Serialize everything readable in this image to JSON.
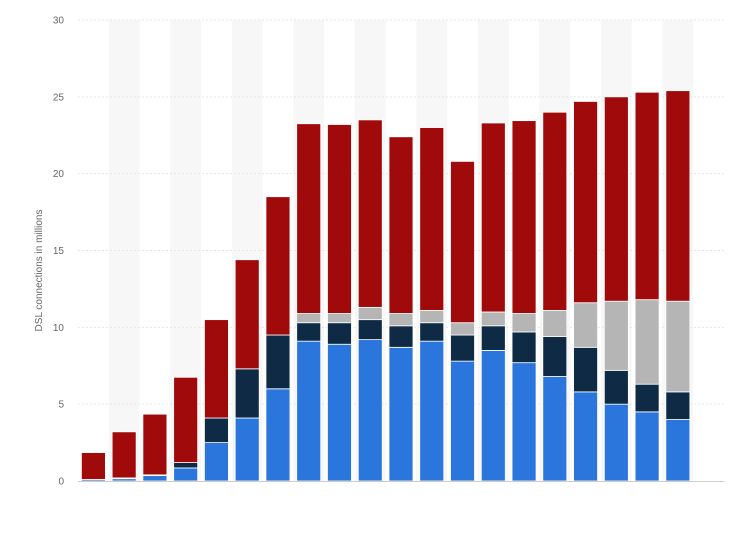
{
  "chart_data": {
    "type": "bar",
    "stacked": true,
    "title": "",
    "xlabel": "",
    "ylabel": "DSL connections in millions",
    "ylim": [
      0,
      30
    ],
    "yticks": [
      0,
      5,
      10,
      15,
      20,
      25,
      30
    ],
    "grid": true,
    "legend": "none",
    "categories": [
      "",
      "",
      "",
      "",
      "",
      "",
      "",
      "",
      "",
      "",
      "",
      "",
      "",
      "",
      "",
      "",
      "",
      "",
      "",
      "",
      ""
    ],
    "series": [
      {
        "color": "#2a76dd",
        "values": [
          0.1,
          0.15,
          0.35,
          0.85,
          2.5,
          4.1,
          6.0,
          9.1,
          8.9,
          9.2,
          8.7,
          9.1,
          7.8,
          8.5,
          7.7,
          6.8,
          5.8,
          5.0,
          4.5,
          4.0,
          0
        ]
      },
      {
        "color": "#0f2a44",
        "values": [
          0.0,
          0.05,
          0.05,
          0.35,
          1.6,
          3.2,
          3.5,
          1.2,
          1.4,
          1.3,
          1.4,
          1.2,
          1.7,
          1.6,
          2.0,
          2.6,
          2.9,
          2.2,
          1.8,
          1.8,
          0
        ]
      },
      {
        "color": "#b5b5b5",
        "values": [
          0.0,
          0.0,
          0.0,
          0.0,
          0.0,
          0.0,
          0.0,
          0.6,
          0.6,
          0.8,
          0.8,
          0.8,
          0.8,
          0.9,
          1.2,
          1.7,
          2.9,
          4.5,
          5.5,
          5.9,
          0
        ]
      },
      {
        "color": "#a10a0a",
        "values": [
          1.75,
          3.0,
          3.95,
          5.55,
          6.4,
          7.1,
          9.0,
          12.35,
          12.3,
          12.2,
          11.5,
          11.9,
          10.5,
          12.3,
          12.55,
          12.9,
          13.1,
          13.3,
          13.5,
          13.7,
          0
        ]
      }
    ]
  }
}
